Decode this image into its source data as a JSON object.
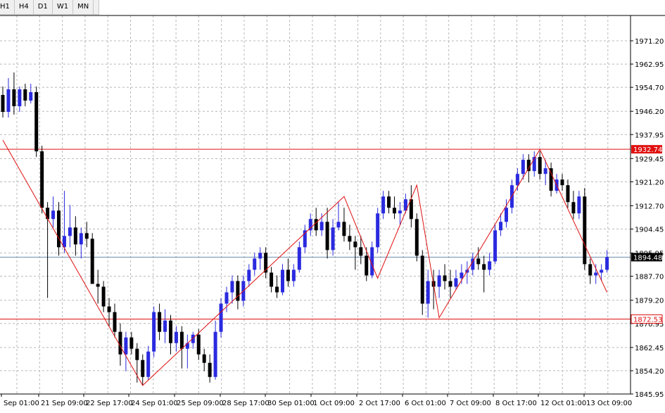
{
  "toolbar": {
    "timeframes": [
      "H1",
      "H4",
      "D1",
      "W1",
      "MN"
    ]
  },
  "chart_data": {
    "type": "candlestick",
    "ylim": [
      1845.95,
      1975.0
    ],
    "y_ticks": [
      "1971.20",
      "1962.95",
      "1954.70",
      "1946.20",
      "1937.95",
      "1929.45",
      "1921.20",
      "1912.70",
      "1904.45",
      "1895.95",
      "1887.70",
      "1879.20",
      "1870.95",
      "1862.45",
      "1854.20",
      "1845.95"
    ],
    "x_ticks": [
      "Sep 01:00",
      "21 Sep 09:00",
      "22 Sep 17:00",
      "24 Sep 01:00",
      "25 Sep 09:00",
      "28 Sep 17:00",
      "30 Sep 01:00",
      "1 Oct 09:00",
      "2 Oct 17:00",
      "6 Oct 01:00",
      "7 Oct 09:00",
      "8 Oct 17:00",
      "12 Oct 01:00",
      "13 Oct 09:00"
    ],
    "hlines": [
      {
        "value": 1932.74,
        "label": "1932.74",
        "color": "#e01010",
        "box": "filled"
      },
      {
        "value": 1872.53,
        "label": "1872.53",
        "color": "#e01010",
        "box": "outline"
      },
      {
        "value": 1894.48,
        "label": "1894.48",
        "color": "#6f8fb0",
        "box": "dark"
      }
    ],
    "zigzag": [
      [
        0,
        1936.0
      ],
      [
        25,
        1849.0
      ],
      [
        61,
        1916.0
      ],
      [
        67,
        1887.0
      ],
      [
        74,
        1920.0
      ],
      [
        78,
        1873.0
      ],
      [
        96,
        1932.7
      ],
      [
        108,
        1882.0
      ]
    ],
    "bull_color": "#2a2adf",
    "bear_color": "#000000",
    "zigzag_color": "#e01010",
    "candles": [
      [
        1952.0,
        1955.0,
        1944.0,
        1946.0
      ],
      [
        1946.0,
        1958.0,
        1944.0,
        1954.0
      ],
      [
        1954.0,
        1960.0,
        1945.0,
        1948.0
      ],
      [
        1948.0,
        1955.0,
        1946.0,
        1954.0
      ],
      [
        1954.0,
        1956.0,
        1948.0,
        1950.0
      ],
      [
        1950.0,
        1956.0,
        1949.0,
        1953.0
      ],
      [
        1953.0,
        1955.0,
        1930.0,
        1932.0
      ],
      [
        1932.0,
        1934.0,
        1910.0,
        1912.0
      ],
      [
        1912.0,
        1914.0,
        1880.0,
        1908.0
      ],
      [
        1908.0,
        1916.0,
        1905.0,
        1911.0
      ],
      [
        1911.0,
        1914.0,
        1895.0,
        1898.0
      ],
      [
        1898.0,
        1918.0,
        1896.0,
        1902.0
      ],
      [
        1902.0,
        1913.0,
        1898.0,
        1905.0
      ],
      [
        1905.0,
        1909.0,
        1895.0,
        1899.0
      ],
      [
        1899.0,
        1905.0,
        1894.0,
        1903.0
      ],
      [
        1903.0,
        1907.0,
        1898.0,
        1901.0
      ],
      [
        1901.0,
        1903.0,
        1885.0,
        1885.0
      ],
      [
        1885.0,
        1890.0,
        1878.0,
        1884.0
      ],
      [
        1884.0,
        1886.0,
        1875.0,
        1877.0
      ],
      [
        1877.0,
        1880.0,
        1870.0,
        1875.0
      ],
      [
        1875.0,
        1878.0,
        1866.0,
        1868.0
      ],
      [
        1868.0,
        1871.0,
        1856.0,
        1860.0
      ],
      [
        1860.0,
        1868.0,
        1854.0,
        1866.0
      ],
      [
        1866.0,
        1868.0,
        1860.0,
        1862.0
      ],
      [
        1862.0,
        1864.0,
        1850.0,
        1858.0
      ],
      [
        1858.0,
        1860.0,
        1849.0,
        1852.0
      ],
      [
        1852.0,
        1863.0,
        1851.0,
        1861.0
      ],
      [
        1861.0,
        1877.0,
        1859.0,
        1875.0
      ],
      [
        1875.0,
        1878.0,
        1865.0,
        1868.0
      ],
      [
        1868.0,
        1876.0,
        1864.0,
        1872.0
      ],
      [
        1872.0,
        1874.0,
        1860.0,
        1864.0
      ],
      [
        1864.0,
        1870.0,
        1861.0,
        1868.0
      ],
      [
        1868.0,
        1870.0,
        1855.0,
        1862.0
      ],
      [
        1862.0,
        1867.0,
        1855.0,
        1864.0
      ],
      [
        1864.0,
        1868.0,
        1862.0,
        1867.0
      ],
      [
        1867.0,
        1869.0,
        1858.0,
        1860.0
      ],
      [
        1860.0,
        1862.0,
        1854.0,
        1857.0
      ],
      [
        1857.0,
        1860.0,
        1850.0,
        1852.0
      ],
      [
        1852.0,
        1872.0,
        1851.0,
        1868.0
      ],
      [
        1868.0,
        1880.0,
        1866.0,
        1878.0
      ],
      [
        1878.0,
        1884.0,
        1875.0,
        1882.0
      ],
      [
        1882.0,
        1888.0,
        1878.0,
        1886.0
      ],
      [
        1886.0,
        1888.0,
        1876.0,
        1879.0
      ],
      [
        1879.0,
        1888.0,
        1877.0,
        1886.0
      ],
      [
        1886.0,
        1892.0,
        1884.0,
        1890.0
      ],
      [
        1890.0,
        1896.0,
        1888.0,
        1894.0
      ],
      [
        1894.0,
        1898.0,
        1890.0,
        1896.0
      ],
      [
        1896.0,
        1898.0,
        1887.0,
        1889.0
      ],
      [
        1889.0,
        1891.0,
        1882.0,
        1884.0
      ],
      [
        1884.0,
        1888.0,
        1880.0,
        1882.0
      ],
      [
        1882.0,
        1892.0,
        1881.0,
        1890.0
      ],
      [
        1890.0,
        1894.0,
        1884.0,
        1886.0
      ],
      [
        1886.0,
        1892.0,
        1884.0,
        1890.0
      ],
      [
        1890.0,
        1900.0,
        1889.0,
        1898.0
      ],
      [
        1898.0,
        1906.0,
        1896.0,
        1904.0
      ],
      [
        1904.0,
        1910.0,
        1902.0,
        1908.0
      ],
      [
        1908.0,
        1912.0,
        1902.0,
        1904.0
      ],
      [
        1904.0,
        1910.0,
        1902.0,
        1907.0
      ],
      [
        1907.0,
        1912.0,
        1894.0,
        1897.0
      ],
      [
        1897.0,
        1908.0,
        1895.0,
        1905.0
      ],
      [
        1905.0,
        1914.0,
        1904.0,
        1907.0
      ],
      [
        1907.0,
        1912.0,
        1900.0,
        1902.0
      ],
      [
        1902.0,
        1906.0,
        1897.0,
        1900.0
      ],
      [
        1900.0,
        1902.0,
        1890.0,
        1898.0
      ],
      [
        1898.0,
        1902.0,
        1892.0,
        1895.0
      ],
      [
        1895.0,
        1898.0,
        1886.0,
        1888.0
      ],
      [
        1888.0,
        1900.0,
        1887.0,
        1898.0
      ],
      [
        1898.0,
        1912.0,
        1896.0,
        1910.0
      ],
      [
        1910.0,
        1918.0,
        1908.0,
        1916.0
      ],
      [
        1916.0,
        1918.0,
        1910.0,
        1912.0
      ],
      [
        1912.0,
        1916.0,
        1908.0,
        1910.0
      ],
      [
        1910.0,
        1914.0,
        1906.0,
        1911.0
      ],
      [
        1911.0,
        1917.0,
        1910.0,
        1915.0
      ],
      [
        1915.0,
        1920.0,
        1905.0,
        1908.0
      ],
      [
        1908.0,
        1910.0,
        1893.0,
        1895.0
      ],
      [
        1895.0,
        1897.0,
        1874.0,
        1878.0
      ],
      [
        1878.0,
        1890.0,
        1873.0,
        1886.0
      ],
      [
        1886.0,
        1890.0,
        1876.0,
        1884.0
      ],
      [
        1884.0,
        1890.0,
        1880.0,
        1888.0
      ],
      [
        1888.0,
        1892.0,
        1883.0,
        1886.0
      ],
      [
        1886.0,
        1890.0,
        1880.0,
        1884.0
      ],
      [
        1884.0,
        1890.0,
        1883.0,
        1887.0
      ],
      [
        1887.0,
        1892.0,
        1885.0,
        1889.0
      ],
      [
        1889.0,
        1893.0,
        1885.0,
        1890.0
      ],
      [
        1890.0,
        1896.0,
        1888.0,
        1894.0
      ],
      [
        1894.0,
        1898.0,
        1890.0,
        1892.0
      ],
      [
        1892.0,
        1895.0,
        1882.0,
        1890.0
      ],
      [
        1890.0,
        1896.0,
        1888.0,
        1893.0
      ],
      [
        1893.0,
        1906.0,
        1892.0,
        1904.0
      ],
      [
        1904.0,
        1910.0,
        1902.0,
        1907.0
      ],
      [
        1907.0,
        1915.0,
        1905.0,
        1912.0
      ],
      [
        1912.0,
        1922.0,
        1910.0,
        1920.0
      ],
      [
        1920.0,
        1926.0,
        1918.0,
        1924.0
      ],
      [
        1924.0,
        1931.0,
        1922.0,
        1929.0
      ],
      [
        1929.0,
        1931.0,
        1921.0,
        1925.0
      ],
      [
        1925.0,
        1932.0,
        1923.0,
        1930.0
      ],
      [
        1930.0,
        1932.0,
        1922.0,
        1924.0
      ],
      [
        1924.0,
        1929.0,
        1920.0,
        1926.0
      ],
      [
        1926.0,
        1928.0,
        1916.0,
        1918.0
      ],
      [
        1918.0,
        1924.0,
        1917.0,
        1922.0
      ],
      [
        1922.0,
        1924.0,
        1918.0,
        1920.0
      ],
      [
        1920.0,
        1922.0,
        1912.0,
        1914.0
      ],
      [
        1914.0,
        1918.0,
        1908.0,
        1910.0
      ],
      [
        1910.0,
        1918.0,
        1908.0,
        1916.0
      ],
      [
        1916.0,
        1919.0,
        1890.0,
        1892.0
      ],
      [
        1892.0,
        1894.0,
        1885.0,
        1888.0
      ],
      [
        1888.0,
        1892.0,
        1885.0,
        1889.0
      ],
      [
        1889.0,
        1892.0,
        1886.0,
        1890.0
      ],
      [
        1890.0,
        1897.0,
        1889.0,
        1894.5
      ]
    ]
  }
}
